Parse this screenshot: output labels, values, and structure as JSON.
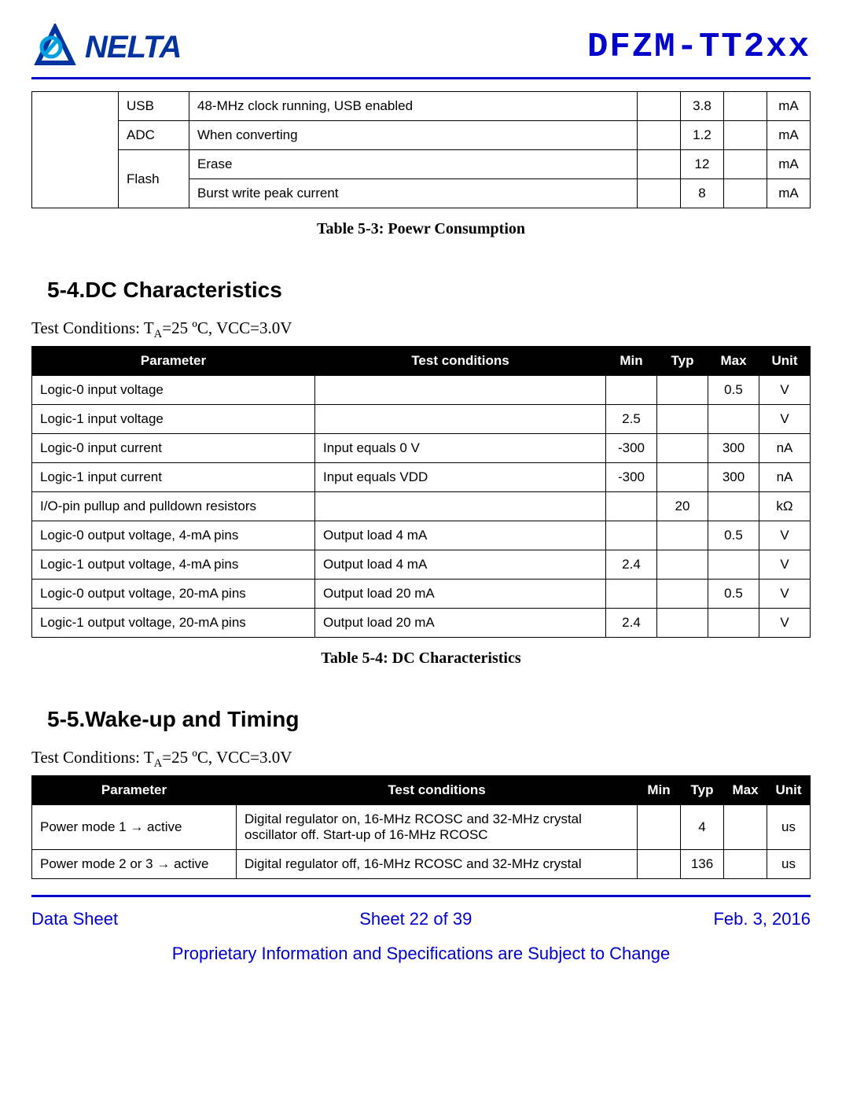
{
  "header": {
    "brand": "NELTA",
    "product": "DFZM-TT2xx",
    "logo_color_primary": "#0033a0",
    "logo_color_accent": "#00a0e0"
  },
  "table1": {
    "rows": [
      {
        "cat": "USB",
        "desc": "48-MHz clock running, USB enabled",
        "min": "",
        "typ": "3.8",
        "max": "",
        "unit": "mA",
        "rowspan": 1
      },
      {
        "cat": "ADC",
        "desc": "When converting",
        "min": "",
        "typ": "1.2",
        "max": "",
        "unit": "mA",
        "rowspan": 1
      },
      {
        "cat": "Flash",
        "desc": "Erase",
        "min": "",
        "typ": "12",
        "max": "",
        "unit": "mA",
        "rowspan": 2
      },
      {
        "cat": "",
        "desc": "Burst write peak current",
        "min": "",
        "typ": "8",
        "max": "",
        "unit": "mA",
        "rowspan": 0
      }
    ],
    "caption": "Table 5-3: Poewr Consumption"
  },
  "section_5_4": {
    "heading": "5-4.DC Characteristics",
    "conditions_prefix": "Test Conditions: T",
    "conditions_sub": "A",
    "conditions_suffix": "=25 ºC, VCC=3.0V"
  },
  "table2": {
    "columns": [
      "Parameter",
      "Test conditions",
      "Min",
      "Typ",
      "Max",
      "Unit"
    ],
    "rows": [
      [
        "Logic-0 input voltage",
        "",
        "",
        "",
        "0.5",
        "V"
      ],
      [
        "Logic-1 input voltage",
        "",
        "2.5",
        "",
        "",
        "V"
      ],
      [
        "Logic-0 input current",
        "Input equals 0 V",
        "-300",
        "",
        "300",
        "nA"
      ],
      [
        "Logic-1 input current",
        "Input equals VDD",
        "-300",
        "",
        "300",
        "nA"
      ],
      [
        "I/O-pin pullup and pulldown resistors",
        "",
        "",
        "20",
        "",
        "kΩ"
      ],
      [
        "Logic-0 output voltage, 4-mA pins",
        "Output load 4 mA",
        "",
        "",
        "0.5",
        "V"
      ],
      [
        "Logic-1 output voltage, 4-mA pins",
        "Output load 4 mA",
        "2.4",
        "",
        "",
        "V"
      ],
      [
        "Logic-0 output voltage, 20-mA pins",
        "Output load 20 mA",
        "",
        "",
        "0.5",
        "V"
      ],
      [
        "Logic-1 output voltage, 20-mA pins",
        "Output load 20 mA",
        "2.4",
        "",
        "",
        "V"
      ]
    ],
    "caption": "Table 5-4: DC Characteristics"
  },
  "section_5_5": {
    "heading": "5-5.Wake-up and Timing",
    "conditions_prefix": "Test Conditions: T",
    "conditions_sub": "A",
    "conditions_suffix": "=25 ºC, VCC=3.0V"
  },
  "table3": {
    "columns": [
      "Parameter",
      "Test conditions",
      "Min",
      "Typ",
      "Max",
      "Unit"
    ],
    "rows": [
      [
        "Power mode 1 → active",
        "Digital regulator on, 16-MHz RCOSC and 32-MHz crystal oscillator off. Start-up of 16-MHz RCOSC",
        "",
        "4",
        "",
        "us"
      ],
      [
        "Power mode 2 or 3 → active",
        "Digital regulator off, 16-MHz RCOSC and 32-MHz crystal",
        "",
        "136",
        "",
        "us"
      ]
    ]
  },
  "footer": {
    "left": "Data Sheet",
    "center": "Sheet 22 of 39",
    "right": "Feb. 3, 2016",
    "note": "Proprietary Information and Specifications are Subject to Change",
    "color": "#0000cc"
  }
}
